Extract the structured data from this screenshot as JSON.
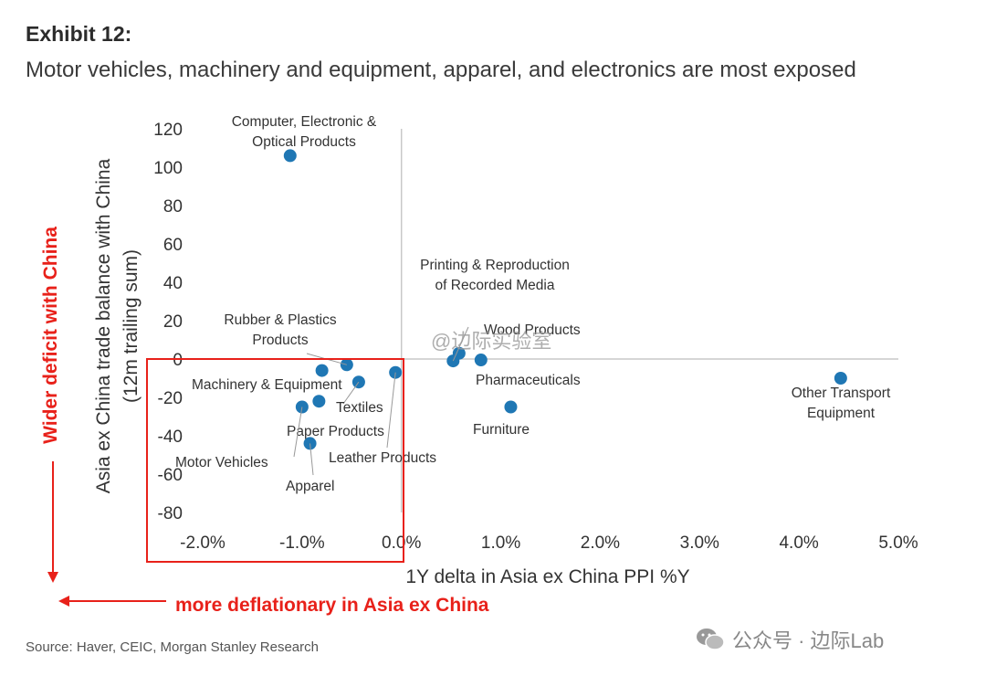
{
  "header": {
    "exhibit": "Exhibit 12:",
    "subtitle": "Motor vehicles, machinery and equipment, apparel, and electronics are most exposed"
  },
  "footer": {
    "source": "Source: Haver, CEIC, Morgan Stanley Research",
    "watermark": "公众号 · 边际Lab",
    "overlay_watermark": "@边际实验室"
  },
  "annotations": {
    "left_arrow": "Wider deficit with China",
    "bottom_arrow": "more deflationary in Asia ex China"
  },
  "colors": {
    "point": "#1f77b4",
    "accent": "#e8211a",
    "axis": "#c8c8c8"
  },
  "chart_data": {
    "type": "scatter",
    "title": "",
    "xlabel": "1Y delta in Asia ex China PPI %Y",
    "ylabel": "Asia ex China trade balance with China",
    "ylabel2": "(12m trailing sum)",
    "xlim": [
      -2.0,
      5.0
    ],
    "ylim": [
      -80,
      120
    ],
    "x_ticks": [
      "-2.0%",
      "-1.0%",
      "0.0%",
      "1.0%",
      "2.0%",
      "3.0%",
      "4.0%",
      "5.0%"
    ],
    "y_ticks": [
      "120",
      "100",
      "80",
      "60",
      "40",
      "20",
      "0",
      "-20",
      "-40",
      "-60",
      "-80"
    ],
    "points": [
      {
        "name": "Computer, Electronic & Optical Products",
        "label_lines": [
          "Computer, Electronic &",
          "Optical Products"
        ],
        "x": -1.12,
        "y": 106
      },
      {
        "name": "Rubber & Plastics Products",
        "label_lines": [
          "Rubber & Plastics",
          "Products"
        ],
        "x": -0.55,
        "y": -3
      },
      {
        "name": "Machinery & Equipment",
        "label_lines": [
          "Machinery & Equipment"
        ],
        "x": -0.8,
        "y": -6
      },
      {
        "name": "Textiles",
        "label_lines": [
          "Textiles"
        ],
        "x": -0.43,
        "y": -12
      },
      {
        "name": "Paper Products",
        "label_lines": [
          "Paper Products"
        ],
        "x": -0.83,
        "y": -22
      },
      {
        "name": "Motor Vehicles",
        "label_lines": [
          "Motor Vehicles"
        ],
        "x": -1.0,
        "y": -25
      },
      {
        "name": "Apparel",
        "label_lines": [
          "Apparel"
        ],
        "x": -0.92,
        "y": -44
      },
      {
        "name": "Leather Products",
        "label_lines": [
          "Leather Products"
        ],
        "x": -0.06,
        "y": -7
      },
      {
        "name": "Printing & Reproduction of Recorded Media",
        "label_lines": [
          "Printing & Reproduction",
          "of Recorded Media"
        ],
        "x": 0.52,
        "y": -1
      },
      {
        "name": "Wood Products",
        "label_lines": [
          "Wood Products"
        ],
        "x": 0.58,
        "y": 3
      },
      {
        "name": "Pharmaceuticals",
        "label_lines": [
          "Pharmaceuticals"
        ],
        "x": 0.8,
        "y": -0.5
      },
      {
        "name": "Furniture",
        "label_lines": [
          "Furniture"
        ],
        "x": 1.1,
        "y": -25
      },
      {
        "name": "Other Transport Equipment",
        "label_lines": [
          "Other Transport",
          "Equipment"
        ],
        "x": 4.42,
        "y": -10
      }
    ]
  }
}
